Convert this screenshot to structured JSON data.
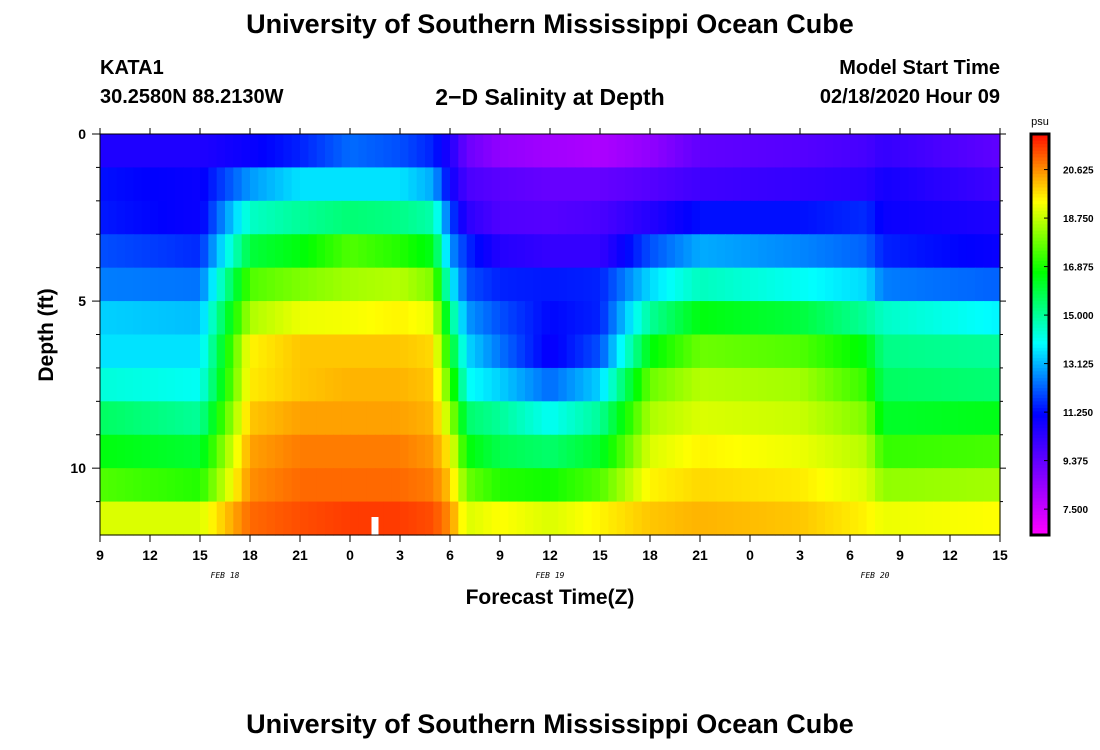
{
  "header": {
    "title": "University of Southern Mississippi Ocean Cube",
    "station": "KATA1",
    "coords": "30.2580N 88.2130W",
    "subtitle": "2−D Salinity at Depth",
    "model_label": "Model Start Time",
    "model_time": "02/18/2020 Hour 09"
  },
  "footer": {
    "title": "University of Southern Mississippi Ocean Cube"
  },
  "colors": {
    "dark": "#000000",
    "marker": "#ffffff"
  },
  "chart_data": {
    "type": "heatmap",
    "title": "2−D Salinity at Depth",
    "xlabel": "Forecast Time(Z)",
    "ylabel": "Depth (ft)",
    "x_ticks": [
      "9",
      "12",
      "15",
      "18",
      "21",
      "0",
      "3",
      "6",
      "9",
      "12",
      "15",
      "18",
      "21",
      "0",
      "3",
      "6",
      "9",
      "12",
      "15"
    ],
    "x_hours": [
      0,
      54
    ],
    "date_labels": [
      {
        "label": "FEB 18",
        "hour": 7.5
      },
      {
        "label": "FEB 19",
        "hour": 27
      },
      {
        "label": "FEB 20",
        "hour": 46.5
      }
    ],
    "y_ticks": [
      {
        "label": "0",
        "value": 0
      },
      {
        "label": "5",
        "value": 5
      },
      {
        "label": "10",
        "value": 10
      }
    ],
    "ylim": [
      0,
      12
    ],
    "depth_levels": [
      0.5,
      1.5,
      2.5,
      3.5,
      4.5,
      5.5,
      6.5,
      7.5,
      8.5,
      9.5,
      10.5,
      11.5
    ],
    "colorbar": {
      "unit": "psu",
      "min": 6.5,
      "max": 22.0,
      "tick_labels": [
        "20.625",
        "18.750",
        "16.875",
        "15.000",
        "13.125",
        "11.250",
        "9.375",
        "7.500"
      ],
      "tick_values": [
        20.625,
        18.75,
        16.875,
        15.0,
        13.125,
        11.25,
        9.375,
        7.5
      ]
    },
    "marker_hour": 16.5,
    "profiles": [
      {
        "hour": 0,
        "values": [
          10.6,
          11.3,
          11.4,
          12.0,
          12.5,
          13.4,
          13.6,
          14.3,
          15.6,
          16.5,
          17.5,
          19.0
        ]
      },
      {
        "hour": 6,
        "values": [
          10.6,
          11.0,
          11.0,
          11.6,
          12.4,
          13.2,
          13.6,
          14.0,
          15.0,
          16.1,
          17.0,
          19.0
        ]
      },
      {
        "hour": 9,
        "values": [
          11.0,
          12.8,
          14.5,
          16.0,
          17.5,
          18.5,
          19.5,
          19.6,
          20.0,
          20.4,
          20.6,
          21.0
        ]
      },
      {
        "hour": 12,
        "values": [
          11.5,
          13.6,
          15.0,
          16.5,
          18.0,
          19.2,
          20.0,
          20.0,
          20.4,
          20.8,
          21.0,
          21.3
        ]
      },
      {
        "hour": 15,
        "values": [
          12.3,
          13.6,
          15.4,
          17.5,
          18.4,
          19.3,
          20.0,
          20.2,
          20.4,
          20.8,
          21.0,
          21.5
        ]
      },
      {
        "hour": 18,
        "values": [
          12.0,
          13.6,
          15.2,
          17.0,
          18.6,
          19.5,
          20.0,
          20.2,
          20.4,
          20.8,
          21.0,
          21.5
        ]
      },
      {
        "hour": 20,
        "values": [
          11.5,
          13.0,
          14.8,
          16.4,
          18.0,
          19.2,
          19.8,
          20.0,
          20.2,
          20.5,
          20.8,
          21.3
        ]
      },
      {
        "hour": 21,
        "values": [
          10.6,
          11.0,
          12.0,
          12.8,
          14.0,
          15.4,
          16.5,
          17.5,
          18.5,
          19.5,
          20.0,
          20.6
        ]
      },
      {
        "hour": 22,
        "values": [
          9.2,
          9.8,
          10.4,
          11.6,
          12.0,
          12.8,
          13.5,
          14.0,
          15.5,
          16.6,
          17.8,
          19.0
        ]
      },
      {
        "hour": 24,
        "values": [
          8.5,
          9.5,
          9.7,
          10.5,
          11.5,
          12.0,
          12.4,
          13.4,
          15.0,
          15.8,
          17.0,
          19.4
        ]
      },
      {
        "hour": 27,
        "values": [
          8.2,
          9.3,
          9.6,
          10.2,
          11.4,
          11.2,
          11.0,
          12.3,
          14.0,
          15.5,
          16.8,
          19.0
        ]
      },
      {
        "hour": 30,
        "values": [
          8.0,
          9.3,
          9.8,
          10.2,
          11.5,
          11.5,
          12.0,
          13.4,
          15.0,
          16.2,
          17.5,
          19.5
        ]
      },
      {
        "hour": 33,
        "values": [
          8.5,
          9.6,
          10.5,
          12.0,
          13.5,
          15.0,
          16.5,
          17.8,
          18.5,
          19.0,
          19.5,
          20.0
        ]
      },
      {
        "hour": 36,
        "values": [
          9.4,
          10.0,
          11.3,
          13.0,
          14.6,
          16.5,
          17.8,
          18.6,
          19.0,
          19.5,
          19.8,
          20.2
        ]
      },
      {
        "hour": 42,
        "values": [
          9.6,
          10.2,
          11.3,
          12.6,
          14.0,
          16.0,
          17.5,
          18.4,
          18.8,
          19.2,
          19.6,
          20.0
        ]
      },
      {
        "hour": 46,
        "values": [
          9.9,
          10.4,
          11.6,
          12.2,
          13.5,
          15.0,
          16.5,
          17.2,
          18.0,
          18.6,
          19.0,
          19.5
        ]
      },
      {
        "hour": 47,
        "values": [
          10.2,
          10.8,
          11.0,
          11.5,
          12.5,
          14.5,
          15.2,
          15.6,
          16.2,
          17.2,
          18.2,
          19.2
        ]
      },
      {
        "hour": 54,
        "values": [
          9.4,
          10.0,
          10.6,
          11.0,
          12.2,
          13.8,
          15.0,
          15.4,
          16.4,
          17.4,
          18.4,
          19.4
        ]
      }
    ]
  }
}
